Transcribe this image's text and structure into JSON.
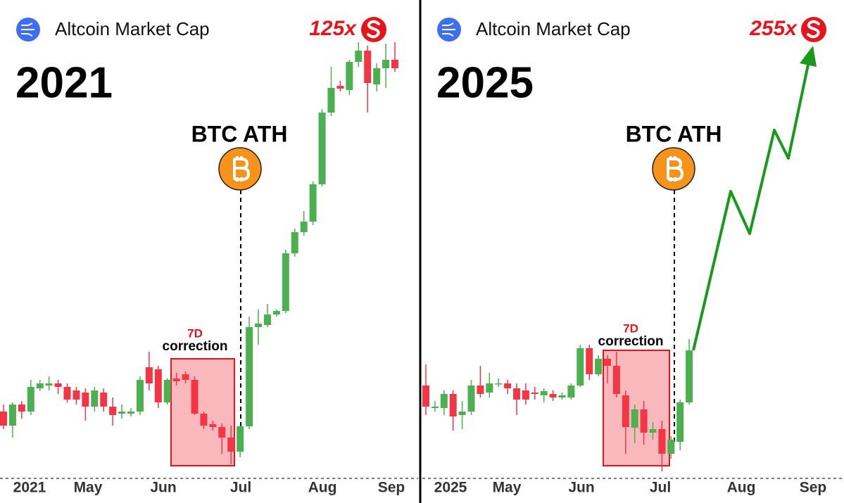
{
  "chart_data": [
    {
      "type": "candlestick",
      "title": "Altcoin Market Cap",
      "year": "2021",
      "multiplier": "125x",
      "annotation": "BTC ATH",
      "box_label": [
        "7D",
        "correction"
      ],
      "x_labels": [
        "2021",
        "May",
        "Jun",
        "Jul",
        "Aug",
        "Sep"
      ],
      "up_color": "#4caf50",
      "down_color": "#f23645",
      "ylim": [
        0,
        680
      ],
      "open": [
        95,
        75,
        105,
        95,
        128,
        132,
        135,
        130,
        125,
        122,
        102,
        122,
        102,
        92,
        92,
        95,
        158,
        155,
        108,
        142,
        148,
        140,
        92,
        77,
        73,
        58,
        38,
        74,
        215,
        218,
        233,
        238,
        320,
        350,
        365,
        418,
        520,
        558,
        552,
        592,
        608,
        560,
        583,
        595
      ],
      "high": [
        105,
        108,
        110,
        140,
        140,
        145,
        140,
        135,
        130,
        128,
        130,
        128,
        115,
        105,
        100,
        145,
        180,
        160,
        142,
        150,
        152,
        145,
        95,
        82,
        78,
        75,
        75,
        230,
        240,
        248,
        240,
        325,
        355,
        380,
        422,
        525,
        585,
        565,
        595,
        620,
        615,
        590,
        618,
        620
      ],
      "low": [
        70,
        58,
        85,
        90,
        124,
        125,
        120,
        108,
        105,
        82,
        95,
        95,
        75,
        85,
        88,
        90,
        125,
        100,
        105,
        132,
        135,
        90,
        70,
        68,
        35,
        20,
        30,
        70,
        190,
        215,
        230,
        235,
        315,
        345,
        360,
        415,
        515,
        550,
        545,
        585,
        520,
        550,
        555,
        578
      ],
      "close": [
        75,
        105,
        95,
        130,
        135,
        135,
        130,
        112,
        112,
        102,
        125,
        102,
        90,
        95,
        95,
        140,
        135,
        108,
        140,
        138,
        140,
        92,
        75,
        73,
        58,
        38,
        74,
        215,
        220,
        233,
        238,
        320,
        350,
        365,
        418,
        520,
        555,
        554,
        592,
        608,
        562,
        583,
        595,
        583
      ]
    },
    {
      "type": "candlestick",
      "title": "Altcoin Market Cap",
      "year": "2025",
      "multiplier": "255x",
      "annotation": "BTC ATH",
      "box_label": [
        "7D",
        "correction"
      ],
      "x_labels": [
        "2025",
        "May",
        "Jun",
        "Jul",
        "Aug",
        "Sep"
      ],
      "up_color": "#4caf50",
      "down_color": "#f23645",
      "ylim": [
        0,
        680
      ],
      "open": [
        132,
        100,
        100,
        120,
        90,
        95,
        132,
        122,
        135,
        135,
        128,
        125,
        122,
        118,
        120,
        115,
        115,
        132,
        185,
        148,
        170,
        160,
        118,
        72,
        98,
        65,
        70,
        35,
        52,
        108
      ],
      "high": [
        162,
        110,
        125,
        125,
        110,
        140,
        160,
        150,
        142,
        140,
        135,
        135,
        130,
        128,
        125,
        122,
        135,
        190,
        190,
        175,
        175,
        180,
        125,
        105,
        110,
        80,
        82,
        60,
        112,
        198
      ],
      "low": [
        90,
        95,
        90,
        68,
        70,
        90,
        115,
        115,
        130,
        120,
        90,
        105,
        112,
        108,
        110,
        112,
        112,
        130,
        140,
        145,
        135,
        115,
        35,
        50,
        48,
        55,
        10,
        28,
        40,
        105
      ],
      "close": [
        102,
        102,
        120,
        88,
        95,
        132,
        120,
        135,
        135,
        128,
        112,
        112,
        120,
        124,
        115,
        118,
        132,
        185,
        148,
        170,
        160,
        120,
        73,
        98,
        65,
        70,
        35,
        55,
        108,
        182
      ]
    }
  ]
}
